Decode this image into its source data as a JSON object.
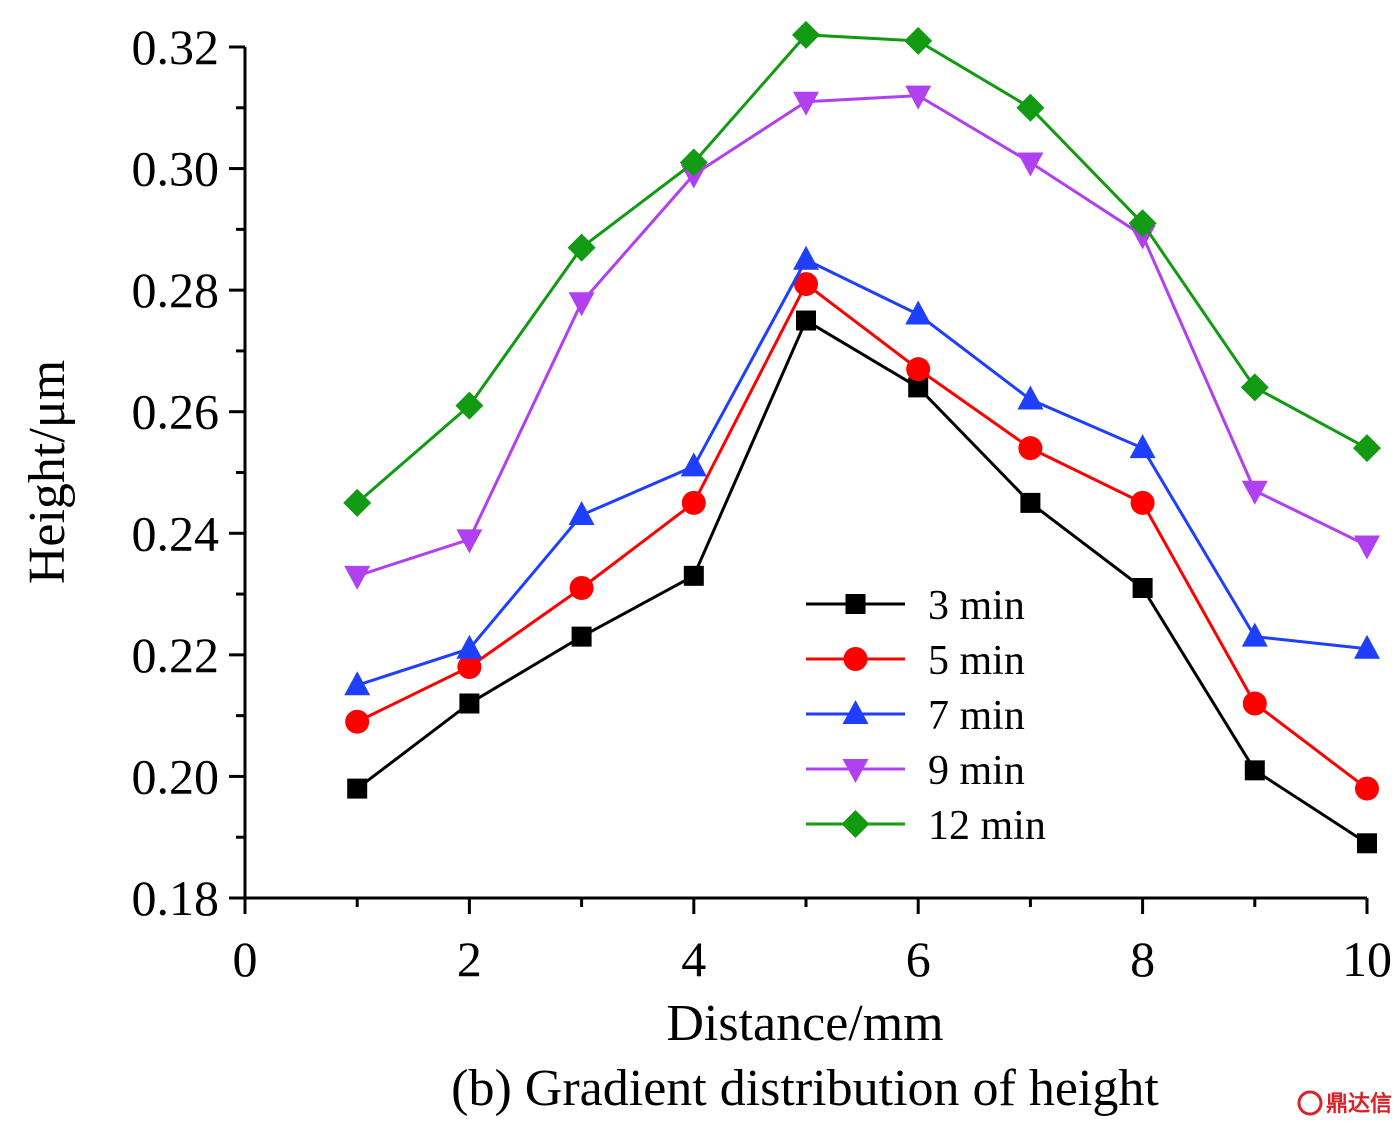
{
  "chart_data": {
    "type": "line",
    "xlabel": "Distance/mm",
    "ylabel": "Height/μm",
    "caption": "(b) Gradient distribution of height",
    "xlim": [
      0,
      10
    ],
    "ylim": [
      0.18,
      0.32
    ],
    "x_ticks": [
      "0",
      "2",
      "4",
      "6",
      "8",
      "10"
    ],
    "y_ticks": [
      "0.18",
      "0.20",
      "0.22",
      "0.24",
      "0.26",
      "0.28",
      "0.30",
      "0.32"
    ],
    "grid": false,
    "legend_position": "bottom-right",
    "x": [
      1,
      2,
      3,
      4,
      5,
      6,
      7,
      8,
      9,
      10
    ],
    "series": [
      {
        "name": "3 min",
        "color": "#000000",
        "marker": "square",
        "values": [
          0.198,
          0.212,
          0.223,
          0.233,
          0.275,
          0.264,
          0.245,
          0.231,
          0.201,
          0.189
        ]
      },
      {
        "name": "5 min",
        "color": "#ff0000",
        "marker": "circle",
        "values": [
          0.209,
          0.218,
          0.231,
          0.245,
          0.281,
          0.267,
          0.254,
          0.245,
          0.212,
          0.198
        ]
      },
      {
        "name": "7 min",
        "color": "#1f3fff",
        "marker": "triangle-up",
        "values": [
          0.215,
          0.221,
          0.243,
          0.251,
          0.285,
          0.276,
          0.262,
          0.254,
          0.223,
          0.221
        ]
      },
      {
        "name": "9 min",
        "color": "#b040f0",
        "marker": "triangle-down",
        "values": [
          0.233,
          0.239,
          0.278,
          0.299,
          0.311,
          0.312,
          0.301,
          0.289,
          0.247,
          0.238
        ]
      },
      {
        "name": "12 min",
        "color": "#129a12",
        "marker": "diamond",
        "values": [
          0.245,
          0.261,
          0.287,
          0.301,
          0.322,
          0.321,
          0.31,
          0.291,
          0.264,
          0.254
        ]
      }
    ]
  },
  "watermark": {
    "text": "鼎达信"
  }
}
